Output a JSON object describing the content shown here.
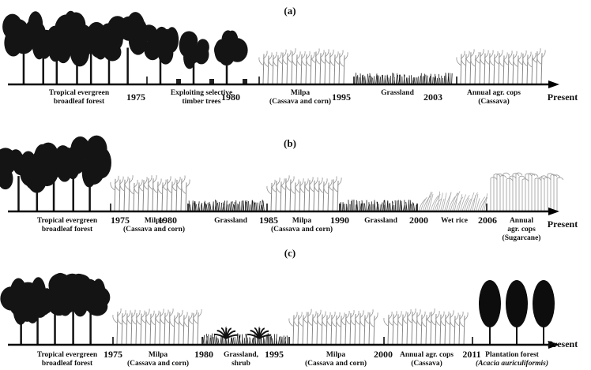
{
  "panels": [
    {
      "label": "(a)",
      "stages": [
        {
          "label": [
            "Tropical evergreen",
            "broadleaf forest"
          ]
        },
        {
          "label": [
            "Exploiting selective",
            "timber trees"
          ]
        },
        {
          "label": [
            "Milpa",
            "(Cassava and corn)"
          ]
        },
        {
          "label": [
            "Grassland"
          ]
        },
        {
          "label": [
            "Annual agr. cops",
            "(Cassava)"
          ]
        }
      ],
      "years": [
        "1975",
        "1980",
        "1995",
        "2003"
      ],
      "end": "Present"
    },
    {
      "label": "(b)",
      "stages": [
        {
          "label": [
            "Tropical evergreen",
            "broadleaf forest"
          ]
        },
        {
          "label": [
            "Milpa",
            "(Cassava and corn)"
          ]
        },
        {
          "label": [
            "Grassland"
          ]
        },
        {
          "label": [
            "Milpa",
            "(Cassava and corn)"
          ]
        },
        {
          "label": [
            "Grassland"
          ]
        },
        {
          "label": [
            "Wet rice"
          ]
        },
        {
          "label": [
            "Annual",
            "agr. cops",
            "(Sugarcane)"
          ]
        }
      ],
      "years": [
        "1975",
        "1980",
        "1985",
        "1990",
        "2000",
        "2006"
      ],
      "end": "Present"
    },
    {
      "label": "(c)",
      "stages": [
        {
          "label": [
            "Tropical evergreen",
            "broadleaf forest"
          ]
        },
        {
          "label": [
            "Milpa",
            "(Cassava and corn)"
          ]
        },
        {
          "label": [
            "Grassland,",
            "shrub"
          ]
        },
        {
          "label": [
            "Milpa",
            "(Cassava and corn)"
          ]
        },
        {
          "label": [
            "Annual agr. cops",
            "(Cassava)"
          ]
        },
        {
          "label": [
            "Plantation forest",
            "(Acacia auriculiformis)"
          ]
        }
      ],
      "years": [
        "1975",
        "1980",
        "1995",
        "2000",
        "2011"
      ],
      "end": "Present"
    }
  ]
}
